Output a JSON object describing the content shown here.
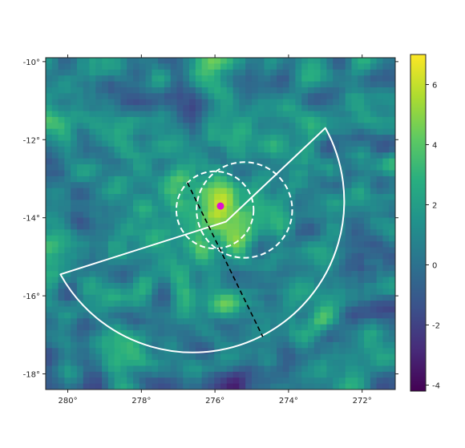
{
  "chart_data": {
    "type": "heatmap",
    "title": "",
    "xlabel": "",
    "ylabel": "",
    "xlim": [
      280.6,
      271.1
    ],
    "ylim": [
      -18.4,
      -9.9
    ],
    "x_ticks": [
      {
        "value": 280,
        "label": "280°"
      },
      {
        "value": 278,
        "label": "278°"
      },
      {
        "value": 276,
        "label": "276°"
      },
      {
        "value": 274,
        "label": "274°"
      },
      {
        "value": 272,
        "label": "272°"
      }
    ],
    "y_ticks": [
      {
        "value": -10,
        "label": "-10°"
      },
      {
        "value": -12,
        "label": "-12°"
      },
      {
        "value": -14,
        "label": "-14°"
      },
      {
        "value": -16,
        "label": "-16°"
      },
      {
        "value": -18,
        "label": "-18°"
      }
    ],
    "colorbar": {
      "colormap": "viridis",
      "range": [
        -4.2,
        7.0
      ],
      "ticks": [
        {
          "value": -4,
          "label": "-4"
        },
        {
          "value": -2,
          "label": "-2"
        },
        {
          "value": 0,
          "label": "0"
        },
        {
          "value": 2,
          "label": "2"
        },
        {
          "value": 4,
          "label": "4"
        },
        {
          "value": 6,
          "label": "6"
        }
      ]
    },
    "hotspot": {
      "lon": 275.7,
      "lat": -14.0,
      "peak_value": 6.5
    },
    "source_marker": {
      "lon": 275.85,
      "lat": -13.7,
      "color": "#e010d0"
    },
    "dashed_circles": [
      {
        "center_lon": 276.0,
        "center_lat": -13.8,
        "radius_deg": 1.05
      },
      {
        "center_lon": 275.2,
        "center_lat": -13.8,
        "radius_deg": 1.3
      }
    ],
    "sector": {
      "center_lon": 275.7,
      "center_lat": -14.1,
      "radius_deg": 3.45,
      "color": "#ffffff",
      "edge1_end": {
        "lon": 273.0,
        "lat": -11.7
      },
      "edge2_end": {
        "lon": 280.2,
        "lat": -15.45
      }
    },
    "dashed_line": {
      "start": {
        "lon": 276.75,
        "lat": -13.1
      },
      "end": {
        "lon": 274.7,
        "lat": -17.05
      },
      "color": "#000000"
    }
  }
}
